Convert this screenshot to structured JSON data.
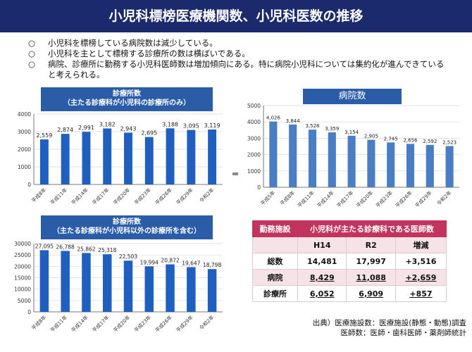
{
  "title": "小児科標榜医療機関数、小児科医数の推移",
  "bullets": [
    "小児科を標榜している病院数は減少している。",
    "小児科を主として標榜する診療所の数は横ばいである。",
    "病院、診療所に勤務する小児科医師数は増加傾向にある。特に病院小児科については集約化が進んできている",
    "と考えられる。"
  ],
  "chart_data": [
    {
      "type": "bar",
      "title": "診療所数",
      "subtitle": "（主たる診療科が小児科の診療所のみ）",
      "categories": [
        "平成8年",
        "平成11年",
        "平成14年",
        "平成17年",
        "平成20年",
        "平成23年",
        "平成26年",
        "平成29年",
        "令和2年"
      ],
      "values": [
        2559,
        2874,
        2991,
        3182,
        2943,
        2695,
        3188,
        3095,
        3119
      ],
      "value_labels": [
        "2,559",
        "2,874",
        "2,991",
        "3,182",
        "2,943",
        "2,695",
        "3,188",
        "3,095",
        "3,119"
      ],
      "ylim": [
        0,
        4000
      ],
      "yticks": [
        "0",
        "1000",
        "2000",
        "3000",
        "4000"
      ],
      "color": "#1f5fbf"
    },
    {
      "type": "bar",
      "title": "病院数",
      "categories": [
        "平成5年",
        "平成8年",
        "平成11年",
        "平成14年",
        "平成17年",
        "平成20年",
        "平成23年",
        "平成26年",
        "平成29年",
        "令和2年"
      ],
      "values": [
        4026,
        3844,
        3528,
        3359,
        3154,
        2905,
        2745,
        2656,
        2592,
        2523
      ],
      "value_labels": [
        "4,026",
        "3,844",
        "3,528",
        "3,359",
        "3,154",
        "2,905",
        "2,745",
        "2,656",
        "2,592",
        "2,523"
      ],
      "ylim": [
        0,
        5000
      ],
      "yticks": [
        "0",
        "1000",
        "2000",
        "3000",
        "4000",
        "5000"
      ],
      "color": "#4a7ec4"
    },
    {
      "type": "bar",
      "title": "診療所数",
      "subtitle": "（主たる診療科が小児科以外の診療所を含む）",
      "categories": [
        "平成8年",
        "平成11年",
        "平成14年",
        "平成17年",
        "平成20年",
        "平成23年",
        "平成26年",
        "平成29年",
        "令和2年"
      ],
      "values": [
        27095,
        26788,
        25862,
        25318,
        22503,
        19994,
        20872,
        19647,
        18798
      ],
      "value_labels": [
        "27,095",
        "26,788",
        "25,862",
        "25,318",
        "22,503",
        "19,994",
        "20,872",
        "19,647",
        "18,798"
      ],
      "ylim": [
        0,
        30000
      ],
      "yticks": [
        "0",
        "5000",
        "10000",
        "15000",
        "20000",
        "25000",
        "30000"
      ],
      "color": "#1f5fbf"
    },
    {
      "type": "table",
      "columns": [
        "勤務施設",
        "小児科が主たる診療科である医師数"
      ],
      "subheaders": [
        "",
        "H14",
        "R2",
        "増減"
      ],
      "rows": [
        {
          "label": "総数",
          "h14": "14,481",
          "r2": "17,997",
          "diff": "+3,516"
        },
        {
          "label": "病院",
          "h14": "8,429",
          "r2": "11,088",
          "diff": "+2,659"
        },
        {
          "label": "診療所",
          "h14": "6,052",
          "r2": "6,909",
          "diff": "+857"
        }
      ]
    }
  ],
  "source": {
    "line1": "出典）医療施設数：医療施設(静態・動態)調査",
    "line2": "医師数：医師・歯科医師・薬剤師統計"
  }
}
